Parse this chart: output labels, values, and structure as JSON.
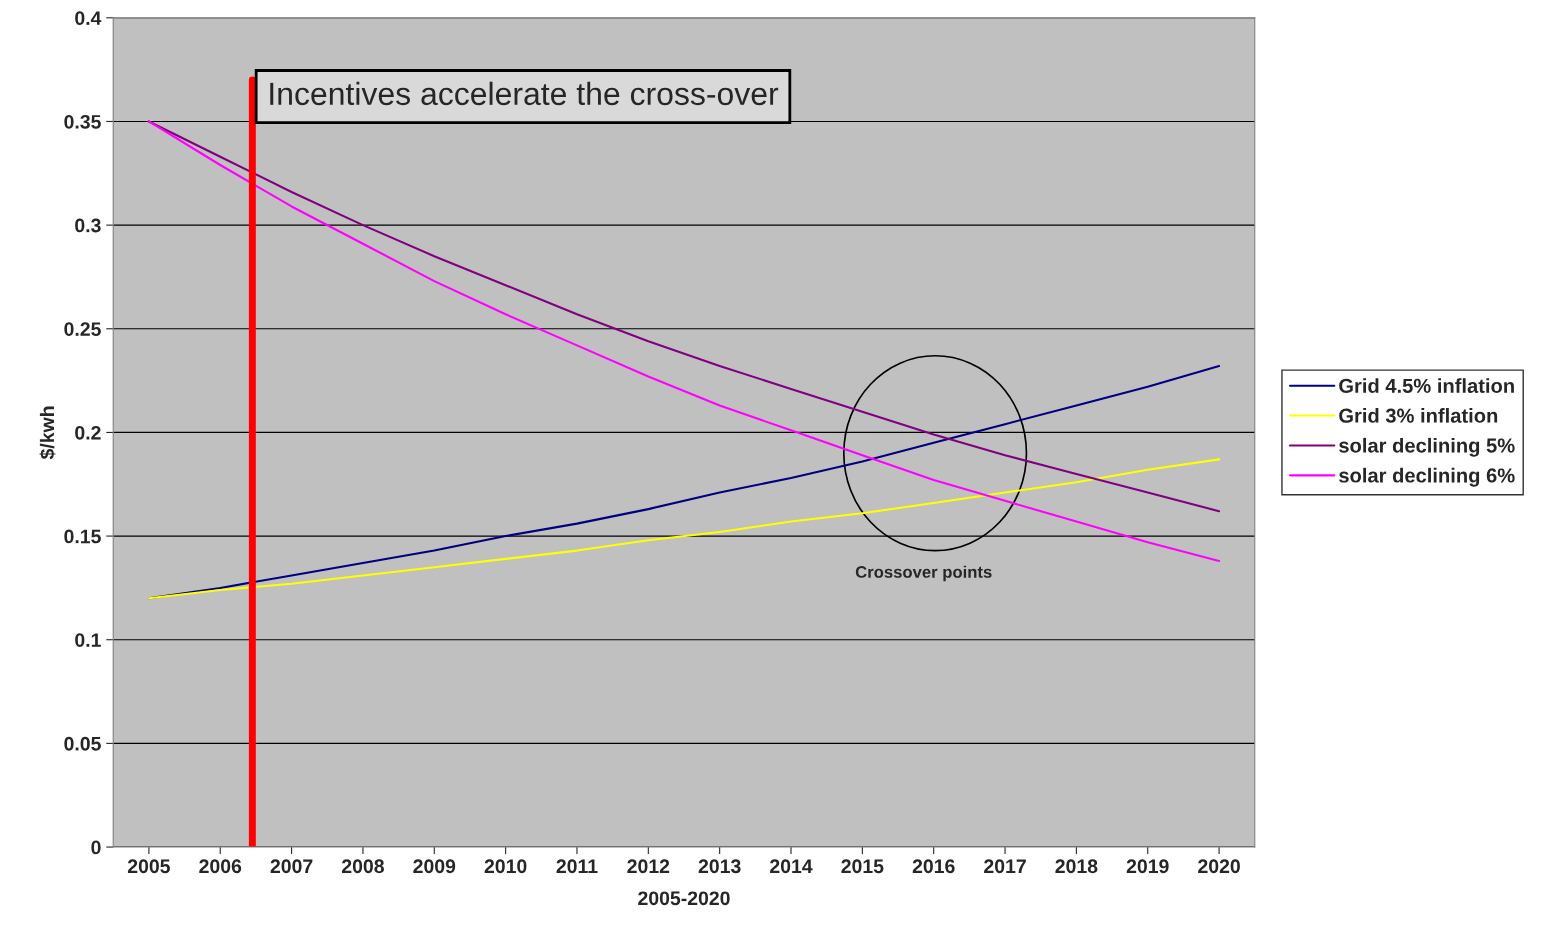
{
  "chart_data": {
    "type": "line",
    "xlabel": "2005-2020",
    "ylabel": "$/kwh",
    "x": [
      2005,
      2006,
      2007,
      2008,
      2009,
      2010,
      2011,
      2012,
      2013,
      2014,
      2015,
      2016,
      2017,
      2018,
      2019,
      2020
    ],
    "series": [
      {
        "name": "Grid 4.5% inflation",
        "color": "#000080",
        "values": [
          0.12,
          0.125,
          0.131,
          0.137,
          0.143,
          0.15,
          0.156,
          0.163,
          0.171,
          0.178,
          0.186,
          0.195,
          0.204,
          0.213,
          0.222,
          0.232
        ]
      },
      {
        "name": "Grid 3% inflation",
        "color": "#ffff00",
        "values": [
          0.12,
          0.124,
          0.127,
          0.131,
          0.135,
          0.139,
          0.143,
          0.148,
          0.152,
          0.157,
          0.161,
          0.166,
          0.171,
          0.176,
          0.182,
          0.187
        ]
      },
      {
        "name": "solar declining 5%",
        "color": "#800080",
        "values": [
          0.35,
          0.333,
          0.316,
          0.3,
          0.285,
          0.271,
          0.257,
          0.244,
          0.232,
          0.221,
          0.21,
          0.199,
          0.189,
          0.18,
          0.171,
          0.162
        ]
      },
      {
        "name": "solar declining 6%",
        "color": "#ff00ff",
        "values": [
          0.35,
          0.329,
          0.309,
          0.291,
          0.273,
          0.257,
          0.242,
          0.227,
          0.213,
          0.201,
          0.189,
          0.177,
          0.167,
          0.157,
          0.147,
          0.138
        ]
      }
    ],
    "xlim": [
      2004.5,
      2020.5
    ],
    "xticks": [
      2005,
      2006,
      2007,
      2008,
      2009,
      2010,
      2011,
      2012,
      2013,
      2014,
      2015,
      2016,
      2017,
      2018,
      2019,
      2020
    ],
    "ylim": [
      0,
      0.4
    ],
    "yticks": [
      0,
      0.05,
      0.1,
      0.15,
      0.2,
      0.25,
      0.3,
      0.35,
      0.4
    ],
    "ref_lines": [
      {
        "axis": "x",
        "value": 2006.45,
        "color": "#ff0000"
      }
    ],
    "annotations": [
      "Incentives accelerate the cross-over",
      "Crossover points"
    ],
    "grid": "y",
    "legend": "right",
    "marker": "none",
    "line_style": "solid"
  }
}
